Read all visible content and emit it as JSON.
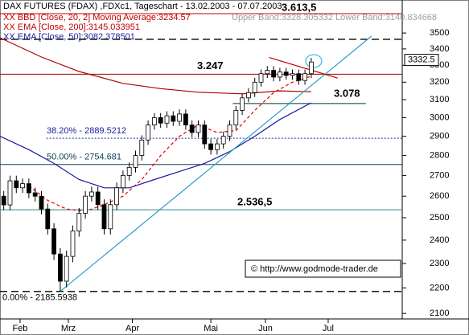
{
  "chart_data": {
    "type": "candlestick",
    "title": "DAX FUTURES (FDAX) ,FDXc1, Tageschart - 13.02.2003 - 07.07.2003",
    "indicator_labels": [
      {
        "text": "XX BBD [Close, 20, 2] Moving Average:3234.57",
        "color": "#c00000"
      },
      {
        "text": "Upper Band:3328.305332 Lower Band:3140.834668",
        "color": "#a0a0a0"
      },
      {
        "text": "XX EMA [Close, 200]:3145.033951",
        "color": "#c00000"
      },
      {
        "text": "XX EMA [Close, 50]:3082.378501",
        "color": "#2020a0"
      }
    ],
    "annotation": "3.613,5",
    "copyright": "© http://www.godmode-trader.de",
    "log_scale": true,
    "ylim": [
      2079,
      3717
    ],
    "yticks": [
      2100,
      2200,
      2300,
      2400,
      2500,
      2600,
      2700,
      2800,
      2900,
      3000,
      3100,
      3200,
      3300,
      3400,
      3500
    ],
    "xlim": [
      -0.6,
      63.5
    ],
    "xticks": [
      {
        "value": 2.6,
        "label": "Feb"
      },
      {
        "value": 10.3,
        "label": "Mrz"
      },
      {
        "value": 20.5,
        "label": "Apr"
      },
      {
        "value": 33,
        "label": "Mai"
      },
      {
        "value": 41.7,
        "label": "Jun"
      },
      {
        "value": 51.7,
        "label": "Jul"
      }
    ],
    "x": [
      0,
      1,
      2,
      3,
      4,
      5,
      6,
      7,
      8,
      9,
      10,
      11,
      12,
      13,
      14,
      15,
      16,
      17,
      18,
      19,
      20,
      21,
      22,
      23,
      24,
      25,
      26,
      27,
      28,
      29,
      30,
      31,
      32,
      33,
      34,
      35,
      36,
      37,
      38,
      39,
      40,
      41,
      42,
      43,
      44,
      45,
      46,
      47,
      48,
      49
    ],
    "open": [
      2600,
      2559,
      2674,
      2640,
      2660,
      2616,
      2600,
      2540,
      2450,
      2340,
      2227,
      2330,
      2440,
      2520,
      2600,
      2620,
      2560,
      2450,
      2560,
      2640,
      2700,
      2740,
      2800,
      2880,
      2960,
      3000,
      2970,
      3010,
      2980,
      3020,
      2960,
      2920,
      2960,
      2860,
      2830,
      2860,
      2900,
      2960,
      3040,
      3110,
      3140,
      3200,
      3250,
      3270,
      3230,
      3260,
      3240,
      3250,
      3210,
      3250
    ],
    "high": [
      2625,
      2699,
      2699,
      2685,
      2685,
      2641,
      2625,
      2565,
      2475,
      2365,
      2355,
      2465,
      2545,
      2625,
      2645,
      2645,
      2585,
      2585,
      2665,
      2725,
      2765,
      2825,
      2905,
      2985,
      3025,
      3025,
      3035,
      3035,
      3045,
      3045,
      2985,
      2985,
      2985,
      2885,
      2885,
      2925,
      2985,
      3065,
      3135,
      3165,
      3225,
      3275,
      3295,
      3295,
      3285,
      3285,
      3275,
      3275,
      3275,
      3345
    ],
    "low": [
      2534,
      2534,
      2615,
      2615,
      2591,
      2575,
      2515,
      2425,
      2315,
      2186,
      2202,
      2305,
      2415,
      2495,
      2575,
      2535,
      2425,
      2425,
      2535,
      2615,
      2675,
      2715,
      2775,
      2855,
      2935,
      2945,
      2945,
      2955,
      2955,
      2935,
      2895,
      2895,
      2835,
      2805,
      2805,
      2835,
      2875,
      2935,
      3015,
      3085,
      3115,
      3175,
      3225,
      3205,
      3205,
      3215,
      3215,
      3185,
      3185,
      3225
    ],
    "close": [
      2559,
      2674,
      2640,
      2660,
      2616,
      2600,
      2540,
      2450,
      2340,
      2227,
      2330,
      2440,
      2520,
      2600,
      2620,
      2560,
      2450,
      2560,
      2640,
      2700,
      2740,
      2800,
      2880,
      2960,
      3000,
      2970,
      3010,
      2980,
      3020,
      2960,
      2920,
      2960,
      2860,
      2830,
      2860,
      2900,
      2960,
      3040,
      3110,
      3140,
      3200,
      3250,
      3270,
      3230,
      3260,
      3240,
      3250,
      3210,
      3250,
      3320
    ],
    "series": [
      {
        "color": "#b00000",
        "dash": false,
        "x": [
          -0.6,
          6,
          12,
          19,
          25,
          31,
          38,
          44,
          49
        ],
        "values": [
          3470,
          3350,
          3263,
          3193,
          3163,
          3142,
          3133,
          3150,
          3145
        ]
      },
      {
        "color": "#e00000",
        "dash": true,
        "x": [
          4,
          7,
          10,
          13,
          16,
          19,
          22,
          25,
          28,
          31,
          34,
          37,
          40,
          43,
          46,
          49
        ],
        "values": [
          2650,
          2580,
          2540,
          2530,
          2560,
          2600,
          2680,
          2800,
          2900,
          2960,
          2920,
          2930,
          3040,
          3140,
          3200,
          3235
        ]
      },
      {
        "color": "#1a1aa0",
        "dash": false,
        "x": [
          -0.6,
          4,
          8,
          12,
          16,
          20,
          24,
          28,
          32,
          36,
          40,
          44,
          49
        ],
        "values": [
          2900,
          2830,
          2760,
          2680,
          2640,
          2640,
          2680,
          2720,
          2760,
          2820,
          2900,
          2990,
          3082
        ]
      }
    ],
    "trendlines": [
      {
        "color": "#2a9fc8",
        "x": [
          9,
          58.6
        ],
        "values": [
          2186,
          3480
        ]
      },
      {
        "color": "#c00000",
        "x": [
          42.3,
          53.2
        ],
        "values": [
          3347,
          3224
        ]
      }
    ],
    "levels": [
      {
        "value": 3247,
        "label": "3.247",
        "color": "#a00000",
        "style": "solid",
        "x": [
          -0.6,
          63.5
        ]
      },
      {
        "value": 3078,
        "label": "3.078",
        "color": "#003040",
        "style": "solid",
        "x": [
          36.5,
          57.7
        ]
      },
      {
        "value": 2536.5,
        "label": "2.536,5",
        "color": "#2a8a8a",
        "style": "solid",
        "x": [
          -0.6,
          63.5
        ]
      },
      {
        "value": 2889.5212,
        "label": "38.20% - 2889.5212",
        "color": "#2020a0",
        "style": "dotted",
        "x": [
          6.8,
          63.5
        ]
      },
      {
        "value": 2754.681,
        "label": "50.00% - 2754.681",
        "color": "#104050",
        "style": "solid",
        "x": [
          -0.6,
          63.5
        ]
      },
      {
        "value": 2185.5938,
        "label": "0.00% - 2185.5938",
        "color": "#000000",
        "style": "dashed",
        "x": [
          -0.6,
          63.5
        ]
      },
      {
        "value": 3460,
        "color": "#000000",
        "style": "dashed",
        "x": [
          -0.6,
          63.5
        ]
      }
    ],
    "last_price": 3332.5
  }
}
